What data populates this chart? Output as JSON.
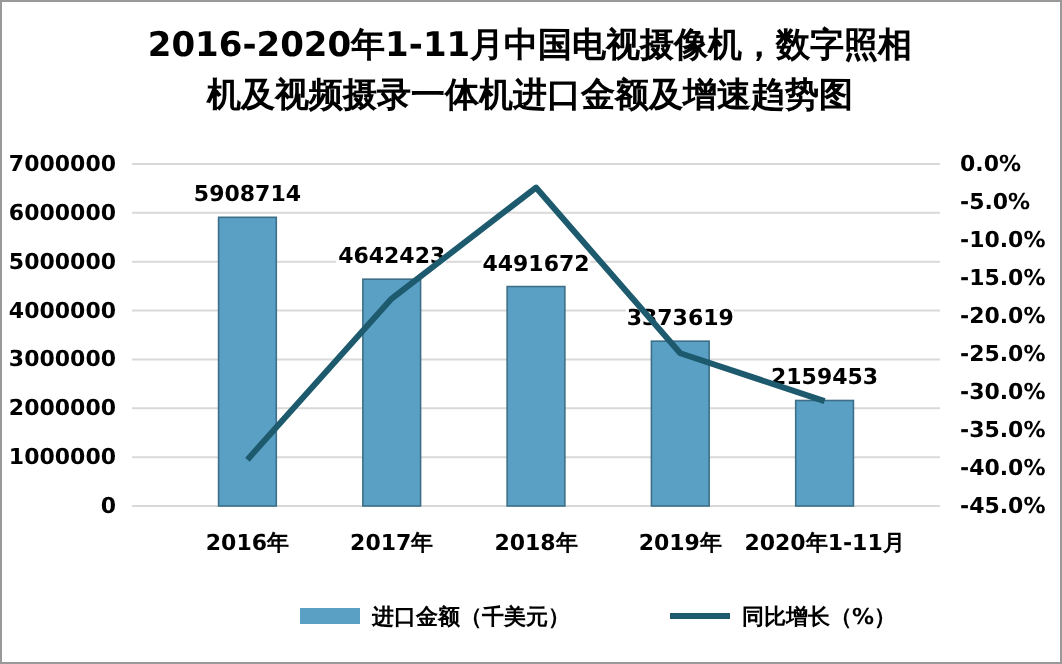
{
  "chart_data": {
    "type": "bar",
    "title": "2016-2020年1-11月中国电视摄像机，数字照相机及视频摄录一体机进口金额及增速趋势图",
    "categories": [
      "2016年",
      "2017年",
      "2018年",
      "2019年",
      "2020年1-11月"
    ],
    "series": [
      {
        "name": "进口金额（千美元）",
        "color": "#5a9fc4",
        "values": [
          5908714,
          4642423,
          4491672,
          3373619,
          2159453
        ],
        "value_labels": [
          "5908714",
          "4642423",
          "4491672",
          "3373619",
          "2159453"
        ]
      },
      {
        "name": "同比增长（%）",
        "type": "line",
        "axis": "y2",
        "color": "#1d5a6e",
        "values": [
          -38.9,
          -17.7,
          -3.1,
          -24.9,
          -31.2
        ]
      }
    ],
    "ylim": [
      0,
      7000000
    ],
    "yticks": [
      0,
      1000000,
      2000000,
      3000000,
      4000000,
      5000000,
      6000000,
      7000000
    ],
    "y2lim": [
      -45,
      0
    ],
    "y2ticks": [
      {
        "value": -45,
        "label": "-45.0%"
      },
      {
        "value": -40,
        "label": "-40.0%"
      },
      {
        "value": -35,
        "label": "-35.0%"
      },
      {
        "value": -30,
        "label": "-30.0%"
      },
      {
        "value": -25,
        "label": "-25.0%"
      },
      {
        "value": -20,
        "label": "-20.0%"
      },
      {
        "value": -15,
        "label": "-15.0%"
      },
      {
        "value": -10,
        "label": "-10.0%"
      },
      {
        "value": -5,
        "label": "-5.0%"
      },
      {
        "value": 0,
        "label": "0.0%"
      }
    ],
    "grid": "y",
    "legend": "bottom",
    "marker": "none"
  }
}
